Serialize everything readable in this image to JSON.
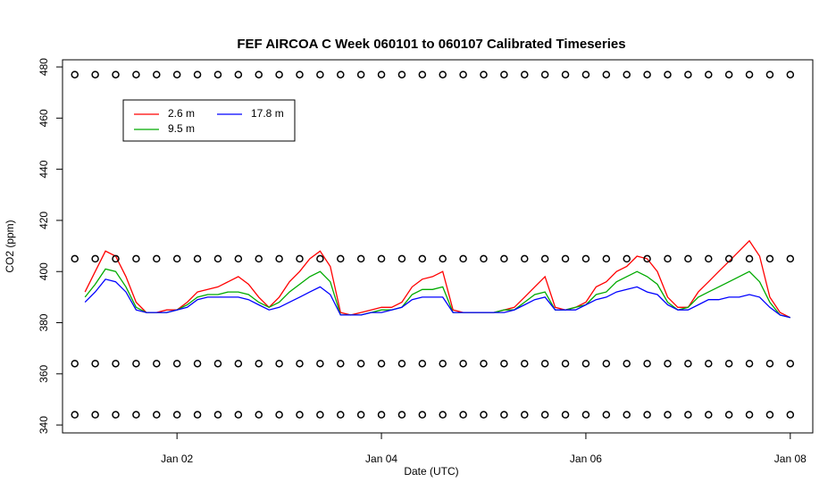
{
  "chart_data": {
    "type": "line",
    "title": "FEF AIRCOA C  Week 060101 to 060107  Calibrated Timeseries",
    "x_label": "Date (UTC)",
    "y_label": "CO2 (ppm)",
    "x": [
      1.1,
      1.2,
      1.3,
      1.4,
      1.5,
      1.6,
      1.7,
      1.8,
      1.9,
      2.0,
      2.1,
      2.2,
      2.3,
      2.4,
      2.5,
      2.6,
      2.7,
      2.8,
      2.9,
      3.0,
      3.1,
      3.2,
      3.3,
      3.4,
      3.5,
      3.6,
      3.7,
      3.8,
      3.9,
      4.0,
      4.1,
      4.2,
      4.3,
      4.4,
      4.5,
      4.6,
      4.7,
      4.8,
      4.9,
      5.0,
      5.1,
      5.2,
      5.3,
      5.4,
      5.5,
      5.6,
      5.7,
      5.8,
      5.9,
      6.0,
      6.1,
      6.2,
      6.3,
      6.4,
      6.5,
      6.6,
      6.7,
      6.8,
      6.9,
      7.0,
      7.1,
      7.2,
      7.3,
      7.4,
      7.5,
      7.6,
      7.7,
      7.8,
      7.9,
      8.0
    ],
    "series": [
      {
        "name": "2.6 m",
        "color": "#ff0000",
        "values": [
          392,
          400,
          408,
          406,
          398,
          388,
          384,
          384,
          385,
          385,
          388,
          392,
          393,
          394,
          396,
          398,
          395,
          390,
          386,
          390,
          396,
          400,
          405,
          408,
          402,
          384,
          383,
          384,
          385,
          386,
          386,
          388,
          394,
          397,
          398,
          400,
          385,
          384,
          384,
          384,
          384,
          385,
          386,
          390,
          394,
          398,
          386,
          385,
          386,
          388,
          394,
          396,
          400,
          402,
          406,
          405,
          400,
          390,
          386,
          386,
          392,
          396,
          400,
          404,
          408,
          412,
          406,
          390,
          384,
          382
        ]
      },
      {
        "name": "9.5 m",
        "color": "#00aa00",
        "values": [
          390,
          395,
          401,
          400,
          394,
          386,
          384,
          384,
          384,
          385,
          387,
          390,
          391,
          391,
          392,
          392,
          391,
          388,
          386,
          388,
          392,
          395,
          398,
          400,
          396,
          383,
          383,
          383,
          384,
          385,
          385,
          386,
          391,
          393,
          393,
          394,
          384,
          384,
          384,
          384,
          384,
          385,
          385,
          388,
          391,
          392,
          385,
          385,
          386,
          387,
          391,
          392,
          396,
          398,
          400,
          398,
          395,
          388,
          385,
          386,
          390,
          392,
          394,
          396,
          398,
          400,
          396,
          388,
          383,
          382
        ]
      },
      {
        "name": "17.8 m",
        "color": "#0000ff",
        "values": [
          388,
          392,
          397,
          396,
          392,
          385,
          384,
          384,
          384,
          385,
          386,
          389,
          390,
          390,
          390,
          390,
          389,
          387,
          385,
          386,
          388,
          390,
          392,
          394,
          391,
          383,
          383,
          383,
          384,
          384,
          385,
          386,
          389,
          390,
          390,
          390,
          384,
          384,
          384,
          384,
          384,
          384,
          385,
          387,
          389,
          390,
          385,
          385,
          385,
          387,
          389,
          390,
          392,
          393,
          394,
          392,
          391,
          387,
          385,
          385,
          387,
          389,
          389,
          390,
          390,
          391,
          390,
          386,
          383,
          382
        ]
      }
    ],
    "markers": {
      "color": "#000000",
      "x": [
        1.0,
        1.2,
        1.4,
        1.6,
        1.8,
        2.0,
        2.2,
        2.4,
        2.6,
        2.8,
        3.0,
        3.2,
        3.4,
        3.6,
        3.8,
        4.0,
        4.2,
        4.4,
        4.6,
        4.8,
        5.0,
        5.2,
        5.4,
        5.6,
        5.8,
        6.0,
        6.2,
        6.4,
        6.6,
        6.8,
        7.0,
        7.2,
        7.4,
        7.6,
        7.8,
        8.0
      ],
      "levels": [
        477,
        405,
        364,
        344
      ]
    },
    "xlim": [
      0.88,
      8.22
    ],
    "ylim": [
      336.9,
      482.8
    ],
    "xticks": [
      {
        "value": 2,
        "label": "Jan 02"
      },
      {
        "value": 4,
        "label": "Jan 04"
      },
      {
        "value": 6,
        "label": "Jan 06"
      },
      {
        "value": 8,
        "label": "Jan 08"
      }
    ],
    "yticks": [
      340,
      360,
      380,
      400,
      420,
      440,
      460,
      480
    ]
  }
}
